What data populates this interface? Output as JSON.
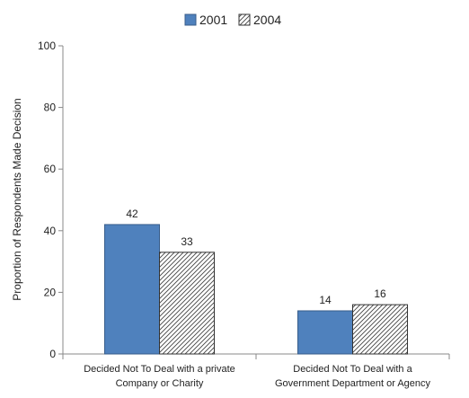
{
  "chart_data": {
    "type": "bar",
    "title": "",
    "ylabel": "Proportion of Respondents Made Decision",
    "xlabel": "",
    "ylim": [
      0,
      100
    ],
    "yticks": [
      0,
      20,
      40,
      60,
      80,
      100
    ],
    "categories": [
      [
        "Decided Not To Deal with a private",
        "Company or Charity"
      ],
      [
        "Decided Not To Deal with a",
        "Government Department or Agency"
      ]
    ],
    "series": [
      {
        "name": "2001",
        "values": [
          42,
          14
        ],
        "color": "#4f81bd",
        "fill": "solid"
      },
      {
        "name": "2004",
        "values": [
          33,
          16
        ],
        "color": "#ffffff",
        "fill": "diagonal-hatch"
      }
    ],
    "legend_position": "top-center",
    "grid": false,
    "data_labels": true
  }
}
